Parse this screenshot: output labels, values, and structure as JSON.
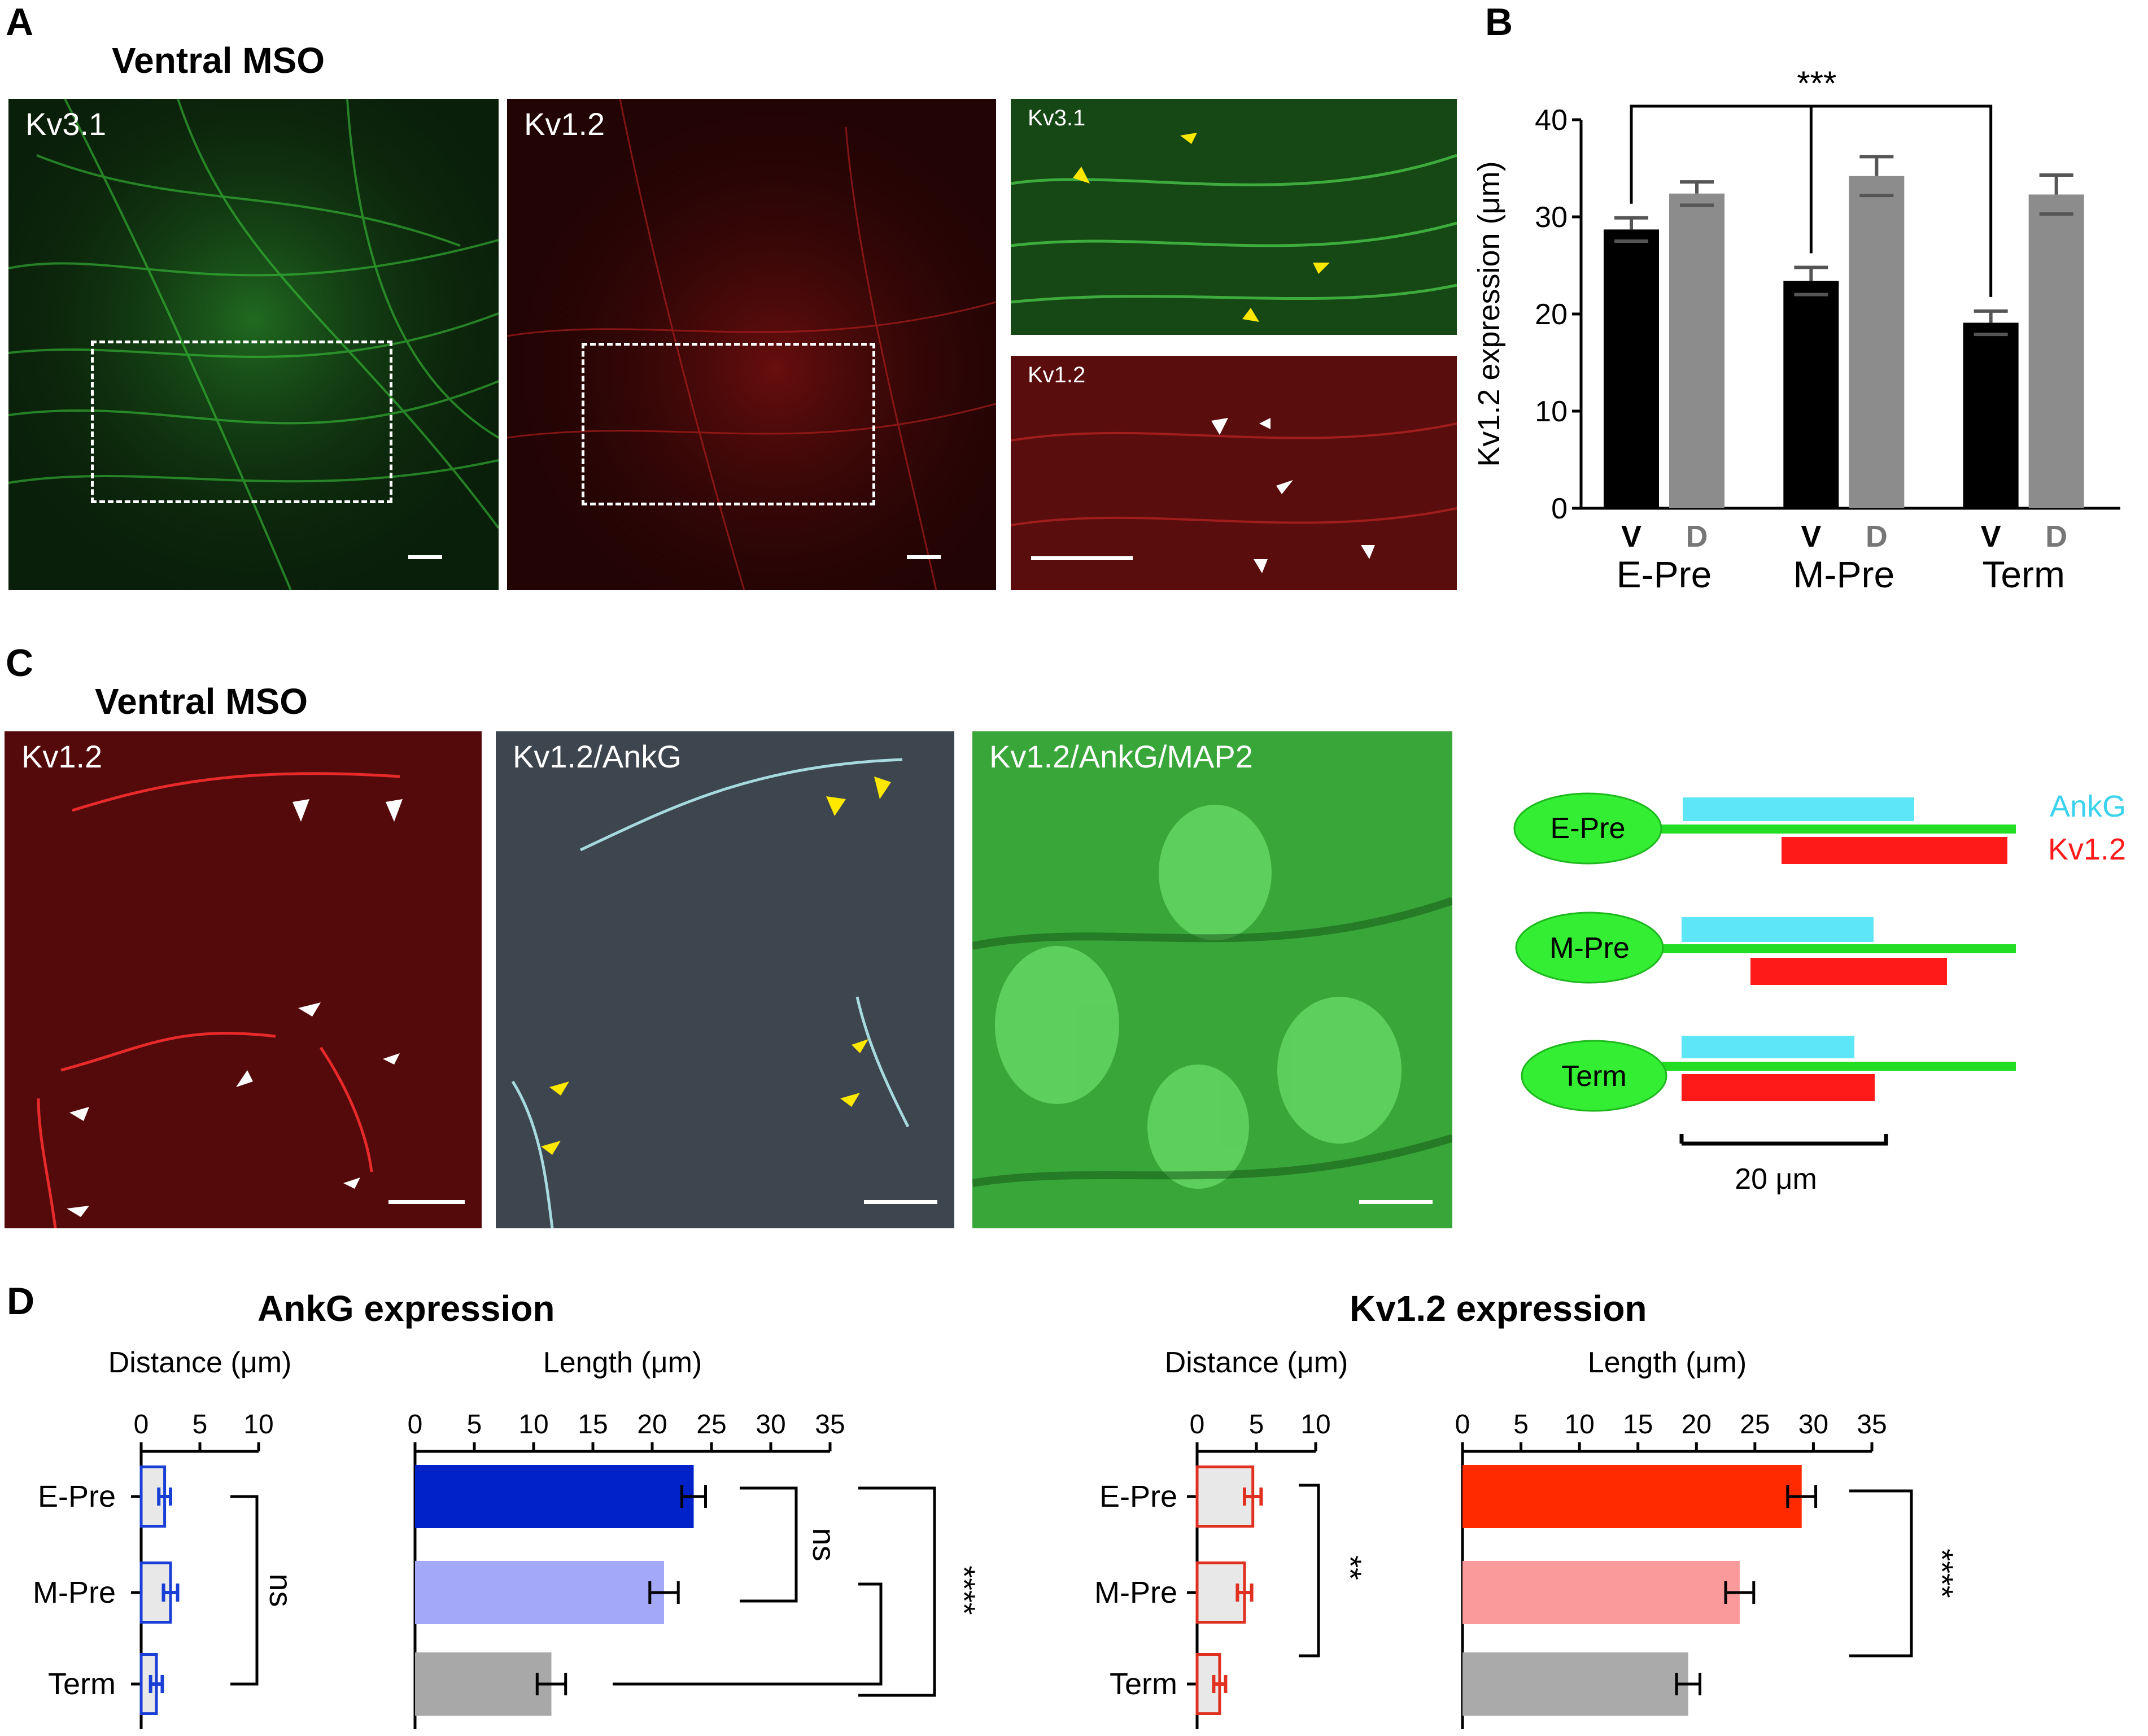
{
  "panel_letters": {
    "a": "A",
    "b": "B",
    "c": "C",
    "d": "D"
  },
  "panel_a": {
    "title": "Ventral MSO",
    "images": {
      "kv31": "Kv3.1",
      "kv12": "Kv1.2",
      "kv31_zoom": "Kv3.1",
      "kv12_zoom": "Kv1.2"
    },
    "colors": {
      "green": "#1e9a2a",
      "red": "#8a0f0f"
    }
  },
  "panel_b": {
    "significance": "***"
  },
  "panel_c": {
    "title": "Ventral MSO",
    "images": {
      "kv12": "Kv1.2",
      "kv12_ankg": "Kv1.2/AnkG",
      "kv12_ankg_map2": "Kv1.2/AnkG/MAP2"
    },
    "schematic": {
      "cells": [
        "E-Pre",
        "M-Pre",
        "Term"
      ],
      "legend_ankg": "AnkG",
      "legend_kv12": "Kv1.2",
      "scale_label": "20 μm",
      "colors": {
        "ankg": "#5de6f5",
        "kv12": "#ff1a1a",
        "axon": "#22dd22",
        "soma": "#33ee33"
      }
    }
  },
  "panel_d": {
    "ankg_title": "AnkG expression",
    "kv12_title": "Kv1.2 expression",
    "ankg_sig_distance": "ns",
    "ankg_sig_length_1": "ns",
    "ankg_sig_length_2": "****",
    "kv12_sig_distance": "**",
    "kv12_sig_length": "****"
  },
  "chart_data": [
    {
      "type": "bar",
      "panel": "B",
      "ylabel": "Kv1.2 expression (μm)",
      "ylim": [
        0,
        40
      ],
      "yticks": [
        0,
        10,
        20,
        30,
        40
      ],
      "groups": [
        "E-Pre",
        "M-Pre",
        "Term"
      ],
      "bar_labels": [
        "V",
        "D"
      ],
      "series": [
        {
          "name": "V",
          "color": "#000000",
          "values": [
            28.7,
            23.4,
            19.1
          ],
          "errors": [
            1.2,
            1.4,
            1.2
          ]
        },
        {
          "name": "D",
          "color": "#8c8c8c",
          "values": [
            32.4,
            34.2,
            32.3
          ],
          "errors": [
            1.2,
            2.0,
            2.0
          ]
        }
      ],
      "significance": "***"
    },
    {
      "type": "bar",
      "orientation": "horizontal",
      "panel": "D",
      "group": "AnkG expression",
      "xlabel": "Distance (μm)",
      "xlim": [
        0,
        10
      ],
      "xticks": [
        0,
        5,
        10
      ],
      "categories": [
        "E-Pre",
        "M-Pre",
        "Term"
      ],
      "values": [
        2.0,
        2.5,
        1.3
      ],
      "errors": [
        0.5,
        0.6,
        0.5
      ],
      "colors": [
        "#1a3fd6",
        "#1a3fd6",
        "#1a3fd6"
      ],
      "significance": "ns"
    },
    {
      "type": "bar",
      "orientation": "horizontal",
      "panel": "D",
      "group": "AnkG expression",
      "xlabel": "Length (μm)",
      "xlim": [
        0,
        35
      ],
      "xticks": [
        0,
        5,
        10,
        15,
        20,
        25,
        30,
        35
      ],
      "categories": [
        "E-Pre",
        "M-Pre",
        "Term"
      ],
      "values": [
        23.5,
        21.0,
        11.5
      ],
      "errors": [
        1.0,
        1.2,
        1.2
      ],
      "colors": [
        "#0022c8",
        "#a3a8f7",
        "#a8a8a8"
      ],
      "significance": [
        "ns",
        "****"
      ]
    },
    {
      "type": "bar",
      "orientation": "horizontal",
      "panel": "D",
      "group": "Kv1.2 expression",
      "xlabel": "Distance (μm)",
      "xlim": [
        0,
        10
      ],
      "xticks": [
        0,
        5,
        10
      ],
      "categories": [
        "E-Pre",
        "M-Pre",
        "Term"
      ],
      "values": [
        4.7,
        4.0,
        1.9
      ],
      "errors": [
        0.7,
        0.6,
        0.5
      ],
      "colors": [
        "#e8e8e8",
        "#e8e8e8",
        "#e8e8e8"
      ],
      "significance": "**"
    },
    {
      "type": "bar",
      "orientation": "horizontal",
      "panel": "D",
      "group": "Kv1.2 expression",
      "xlabel": "Length (μm)",
      "xlim": [
        0,
        35
      ],
      "xticks": [
        0,
        5,
        10,
        15,
        20,
        25,
        30,
        35
      ],
      "categories": [
        "E-Pre",
        "M-Pre",
        "Term"
      ],
      "values": [
        29.0,
        23.7,
        19.3
      ],
      "errors": [
        1.2,
        1.2,
        1.0
      ],
      "colors": [
        "#ff2a00",
        "#fb9a9a",
        "#aaaaaa"
      ],
      "significance": "****"
    }
  ]
}
